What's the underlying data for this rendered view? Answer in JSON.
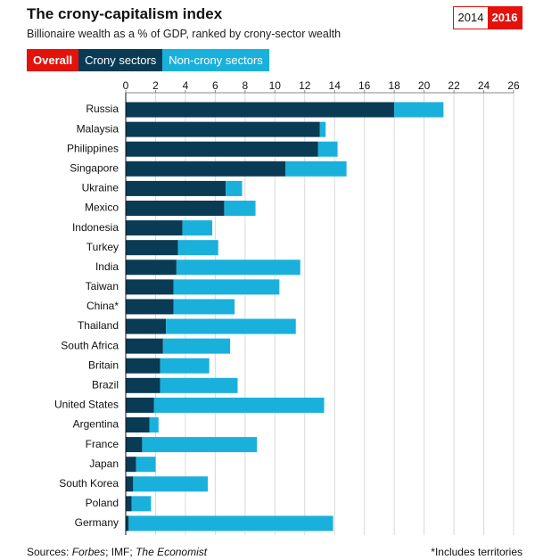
{
  "chart_data": {
    "type": "stacked-bar-horizontal",
    "title": "The crony-capitalism index",
    "subtitle": "Billionaire wealth as a % of GDP, ranked by crony-sector wealth",
    "year_options": [
      "2014",
      "2016"
    ],
    "overall_label": "Overall",
    "categories": [
      "Russia",
      "Malaysia",
      "Philippines",
      "Singapore",
      "Ukraine",
      "Mexico",
      "Indonesia",
      "Turkey",
      "India",
      "Taiwan",
      "China*",
      "Thailand",
      "South Africa",
      "Britain",
      "Brazil",
      "United States",
      "Argentina",
      "France",
      "Japan",
      "South Korea",
      "Poland",
      "Germany"
    ],
    "series": [
      {
        "name": "Crony sectors",
        "color": "#0a3b54",
        "values": [
          18.0,
          13.0,
          12.9,
          10.7,
          6.7,
          6.6,
          3.8,
          3.5,
          3.4,
          3.2,
          3.2,
          2.7,
          2.5,
          2.3,
          2.3,
          1.9,
          1.6,
          1.1,
          0.7,
          0.5,
          0.4,
          0.2
        ]
      },
      {
        "name": "Non-crony sectors",
        "color": "#1ab0dc",
        "values": [
          3.3,
          0.4,
          1.3,
          4.1,
          1.1,
          2.1,
          2.0,
          2.7,
          8.3,
          7.1,
          4.1,
          8.7,
          4.5,
          3.3,
          5.2,
          11.4,
          0.6,
          7.7,
          1.3,
          5.0,
          1.3,
          13.7
        ]
      }
    ],
    "xlim": [
      0,
      26
    ],
    "xticks": [
      0,
      2,
      4,
      6,
      8,
      10,
      12,
      14,
      16,
      18,
      20,
      22,
      24,
      26
    ],
    "grid": true,
    "source": [
      "Sources: ",
      "Forbes",
      "; IMF; ",
      "The Economist"
    ],
    "footnote": "*Includes territories"
  }
}
